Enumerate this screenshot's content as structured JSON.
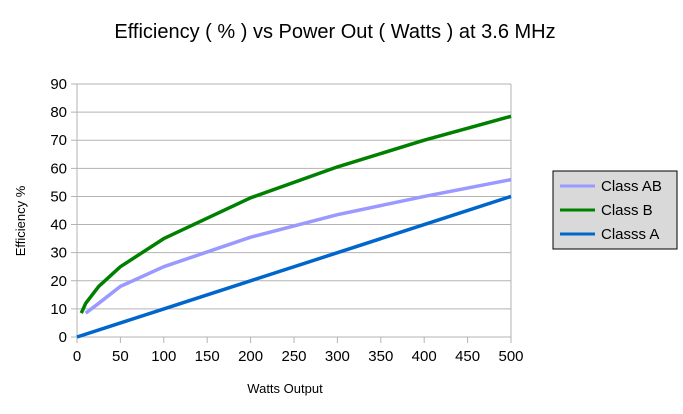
{
  "chart_data": {
    "type": "line",
    "title": "Efficiency ( % ) vs Power Out ( Watts ) at 3.6 MHz",
    "xlabel": "Watts Output",
    "ylabel": "Efficiency %",
    "xlim": [
      0,
      500
    ],
    "ylim": [
      0,
      90
    ],
    "x_ticks": [
      "0",
      "50",
      "100",
      "150",
      "200",
      "250",
      "300",
      "350",
      "400",
      "450",
      "500"
    ],
    "y_ticks": [
      "0",
      "10",
      "20",
      "30",
      "40",
      "50",
      "60",
      "70",
      "80",
      "90"
    ],
    "grid": true,
    "legend_position": "right",
    "series": [
      {
        "name": "Class AB",
        "color": "#9999ff",
        "x": [
          10,
          25,
          50,
          100,
          200,
          300,
          400,
          500
        ],
        "values": [
          8.5,
          12,
          18,
          25,
          35.5,
          43.5,
          50,
          56
        ]
      },
      {
        "name": "Class B",
        "color": "#008000",
        "x": [
          5,
          10,
          25,
          50,
          100,
          200,
          300,
          400,
          500
        ],
        "values": [
          8.5,
          12,
          18,
          25,
          35,
          49.5,
          60.5,
          70,
          78.5
        ]
      },
      {
        "name": "Classs A",
        "color": "#0066cc",
        "x": [
          0,
          100,
          200,
          300,
          400,
          500
        ],
        "values": [
          0,
          10,
          20,
          30,
          40,
          50
        ]
      }
    ]
  }
}
